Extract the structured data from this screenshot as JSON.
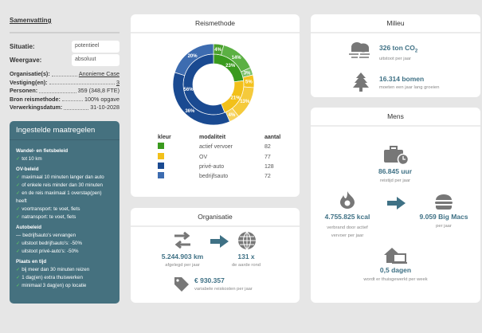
{
  "summary": {
    "title": "Samenvatting",
    "situatie_label": "Situatie:",
    "situatie_value": "potentieel",
    "weergave_label": "Weergave:",
    "weergave_value": "absoluut",
    "info": [
      {
        "label": "Organisatie(s):",
        "value": "Anonieme Case",
        "link": true
      },
      {
        "label": "Vestiging(en):",
        "value": "3",
        "link": true
      },
      {
        "label": "Personen:",
        "value": "359 (348,8 FTE)"
      },
      {
        "label": "Bron reismethode:",
        "value": "100% opgave"
      },
      {
        "label": "Verwerkingsdatum:",
        "value": "31-10-2028"
      }
    ]
  },
  "measures": {
    "title": "Ingestelde maatregelen",
    "groups": [
      {
        "title": "Wandel- en fietsbeleid",
        "items": [
          {
            "mark": "✓",
            "text": "tot 10 km"
          }
        ]
      },
      {
        "title": "OV-beleid",
        "items": [
          {
            "mark": "✓",
            "text": "maximaal 10 minuten langer dan auto"
          },
          {
            "mark": "✓",
            "text": "of enkele reis minder dan 30 minuten"
          },
          {
            "mark": "✓",
            "text": "en de reis maximaal 1 overstap(pen) heeft"
          },
          {
            "mark": "✓",
            "text": "voortransport: te voet, fiets"
          },
          {
            "mark": "✓",
            "text": "natransport: te voet, fiets"
          }
        ]
      },
      {
        "title": "Autobeleid",
        "items": [
          {
            "mark": "—",
            "text": "bedrijfsauto's vervangen"
          },
          {
            "mark": "✓",
            "text": "uitstoot bedrijfsauto's: -50%"
          },
          {
            "mark": "✓",
            "text": "uitstoot privé-auto's: -50%"
          }
        ]
      },
      {
        "title": "Plaats en tijd",
        "items": [
          {
            "mark": "✓",
            "text": "bij meer dan 30 minuten reizen"
          },
          {
            "mark": "✓",
            "text": "1 dag(en) extra thuiswerken"
          },
          {
            "mark": "✓",
            "text": "minimaal 3 dag(en) op locatie"
          }
        ]
      }
    ]
  },
  "reismethode": {
    "title": "Reismethode",
    "headers": [
      "kleur",
      "modaliteit",
      "aantal"
    ],
    "rows": [
      {
        "name": "actief vervoer",
        "count": "82",
        "color": "#3a9a1e"
      },
      {
        "name": "OV",
        "count": "77",
        "color": "#f2c01a"
      },
      {
        "name": "privé-auto",
        "count": "128",
        "color": "#1a4a91"
      },
      {
        "name": "bedrijfsauto",
        "count": "72",
        "color": "#3d6cb0"
      }
    ]
  },
  "chart_data": {
    "type": "pie",
    "title": "Reismethode",
    "inner_ring": [
      {
        "label": "23%",
        "value": 23,
        "color": "#3a9a1e"
      },
      {
        "label": "21%",
        "value": 21,
        "color": "#f2c01a"
      },
      {
        "label": "56%",
        "value": 56,
        "color": "#1a4a91"
      }
    ],
    "outer_ring": [
      {
        "label": "4%",
        "value": 4,
        "color": "#4aa02c"
      },
      {
        "label": "14%",
        "value": 14,
        "color": "#5bb043"
      },
      {
        "label": "3%",
        "value": 3,
        "color": "#7cc16a"
      },
      {
        "label": "5%",
        "value": 5,
        "color": "#f4c21e"
      },
      {
        "label": "13%",
        "value": 13,
        "color": "#f5ca3c"
      },
      {
        "label": "4%",
        "value": 4,
        "color": "#f7d35e"
      },
      {
        "label": "36%",
        "value": 36,
        "color": "#1a4a91"
      },
      {
        "label": "20%",
        "value": 20,
        "color": "#3d6cb0"
      }
    ]
  },
  "organisatie": {
    "title": "Organisatie",
    "km": "5.244.903 km",
    "km_sub": "afgelegd per jaar",
    "earth": "131 x",
    "earth_sub": "de aarde rond",
    "cost": "€ 930.357",
    "cost_sub": "variabele reiskosten per jaar"
  },
  "milieu": {
    "title": "Milieu",
    "co2": "326 ton CO",
    "co2_sub_script": "2",
    "co2_sub": "uitstoot per jaar",
    "trees": "16.314 bomen",
    "trees_sub": "moeten een jaar lang groeien"
  },
  "mens": {
    "title": "Mens",
    "hours": "86.845 uur",
    "hours_sub": "reistijd per jaar",
    "kcal": "4.755.825 kcal",
    "kcal_sub": "verbrand door actief vervoer per jaar",
    "bigmacs": "9.059 Big Macs",
    "bigmacs_sub": "per jaar",
    "home": "0,5 dagen",
    "home_sub": "wordt er thuisgewerkt per week"
  },
  "colors": {
    "accent": "#3f7185",
    "panel": "#45717f",
    "icon": "#777777"
  }
}
